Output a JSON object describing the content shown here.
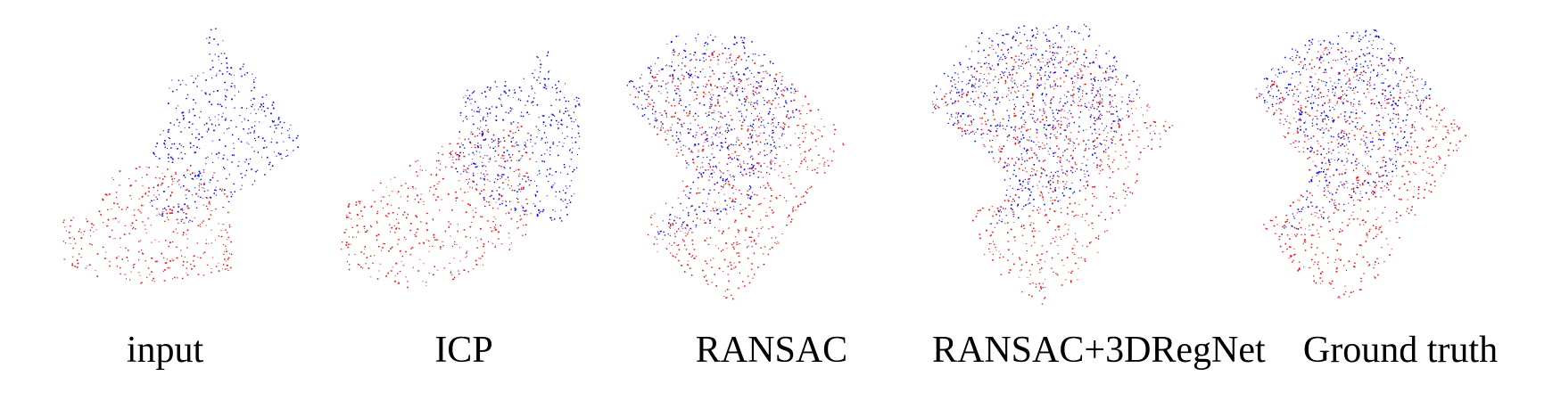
{
  "colors": {
    "source": "#ff0000",
    "target": "#0000ff",
    "background": "#ffffff"
  },
  "panels": [
    {
      "id": "input",
      "caption": "input"
    },
    {
      "id": "icp",
      "caption": "ICP"
    },
    {
      "id": "ransac",
      "caption": "RANSAC"
    },
    {
      "id": "ransac-3dregnet",
      "caption": "RANSAC+3DRegNet"
    },
    {
      "id": "ground-truth",
      "caption": "Ground truth"
    }
  ]
}
